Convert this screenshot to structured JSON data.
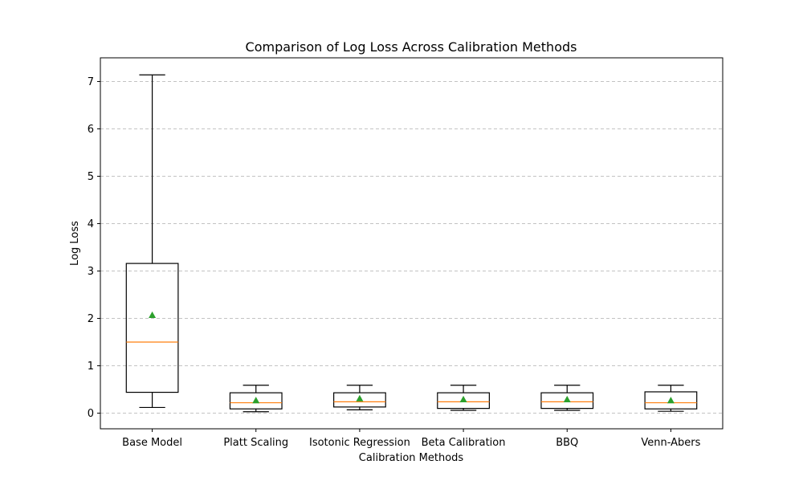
{
  "chart_data": {
    "type": "box",
    "title": "Comparison of Log Loss Across Calibration Methods",
    "xlabel": "Calibration Methods",
    "ylabel": "Log Loss",
    "ylim": [
      -0.33,
      7.5
    ],
    "yticks": [
      0,
      1,
      2,
      3,
      4,
      5,
      6,
      7
    ],
    "grid": "y-dashed",
    "categories": [
      "Base Model",
      "Platt Scaling",
      "Isotonic Regression",
      "Beta Calibration",
      "BBQ",
      "Venn-Abers"
    ],
    "boxes": [
      {
        "whisker_low": 0.12,
        "q1": 0.44,
        "median": 1.5,
        "q3": 3.16,
        "whisker_high": 7.14,
        "mean": 2.07
      },
      {
        "whisker_low": 0.03,
        "q1": 0.09,
        "median": 0.22,
        "q3": 0.43,
        "whisker_high": 0.59,
        "mean": 0.27
      },
      {
        "whisker_low": 0.07,
        "q1": 0.13,
        "median": 0.24,
        "q3": 0.43,
        "whisker_high": 0.59,
        "mean": 0.31
      },
      {
        "whisker_low": 0.06,
        "q1": 0.1,
        "median": 0.24,
        "q3": 0.43,
        "whisker_high": 0.59,
        "mean": 0.29
      },
      {
        "whisker_low": 0.06,
        "q1": 0.1,
        "median": 0.24,
        "q3": 0.43,
        "whisker_high": 0.59,
        "mean": 0.29
      },
      {
        "whisker_low": 0.04,
        "q1": 0.09,
        "median": 0.22,
        "q3": 0.45,
        "whisker_high": 0.59,
        "mean": 0.27
      }
    ],
    "colors": {
      "box": "#000000",
      "median": "#ff7f0e",
      "mean": "#2ca02c",
      "grid": "#b0b0b0"
    }
  }
}
